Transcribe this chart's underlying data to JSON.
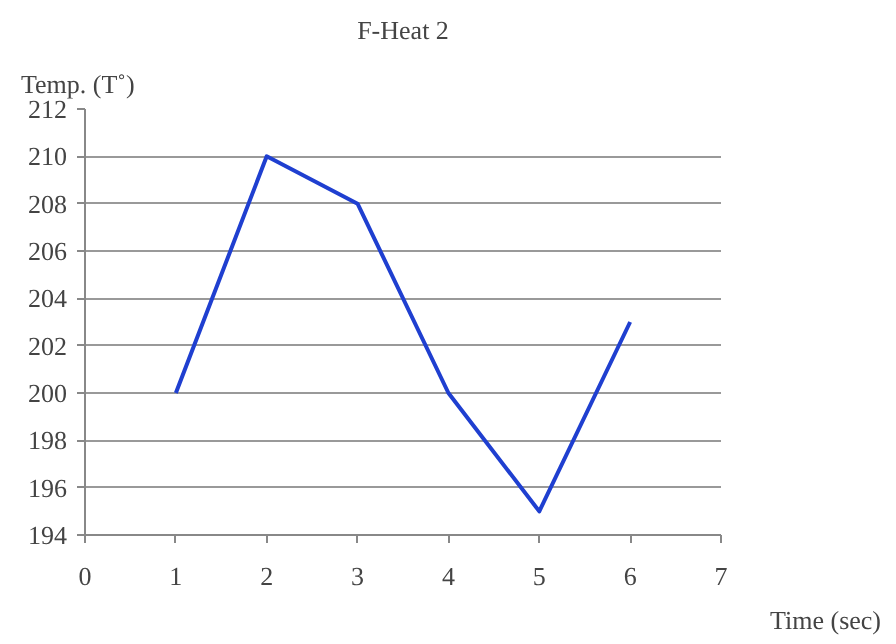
{
  "chart_data": {
    "type": "line",
    "title": "F-Heat 2",
    "xlabel": "Time (sec)",
    "ylabel": "Temp. (T˚)",
    "x": [
      1,
      2,
      3,
      4,
      5,
      6
    ],
    "series": [
      {
        "color": "#1f3fd0",
        "values": [
          200,
          210,
          208,
          200,
          195,
          203
        ]
      }
    ],
    "xlim": [
      0,
      7
    ],
    "xticks": [
      0,
      1,
      2,
      3,
      4,
      5,
      6,
      7
    ],
    "ylim": [
      194,
      212
    ],
    "yticks": [
      194,
      196,
      198,
      200,
      202,
      204,
      206,
      208,
      210,
      212
    ],
    "grid": "y",
    "marker": "none",
    "line_style": "solid"
  }
}
